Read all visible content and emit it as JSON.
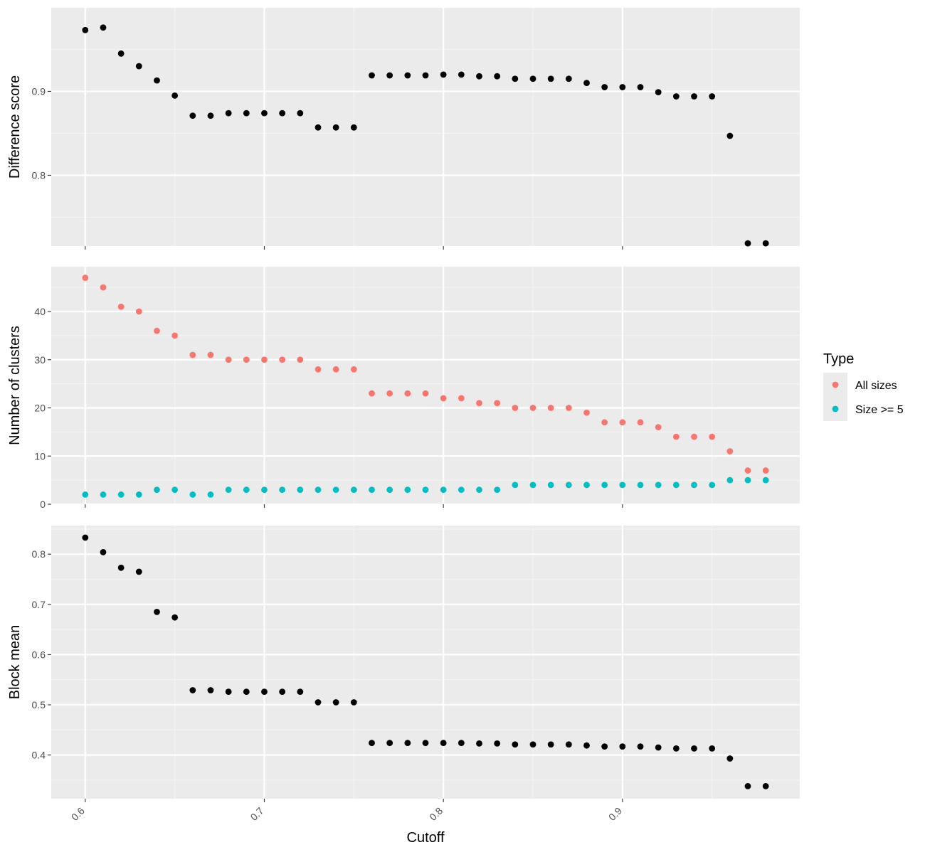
{
  "chart_data": {
    "type": "scatter",
    "xlabel": "Cutoff",
    "x_ticks": [
      "0.6",
      "0.7",
      "0.8",
      "0.9"
    ],
    "x_tick_values": [
      0.6,
      0.7,
      0.8,
      0.9
    ],
    "xlim": [
      0.581,
      0.999
    ],
    "grid": true,
    "legend": {
      "title": "Type",
      "position": "right",
      "entries": [
        {
          "name": "All sizes",
          "color": "#F8766D"
        },
        {
          "name": "Size >= 5",
          "color": "#00BFC4"
        }
      ]
    },
    "x": [
      0.6,
      0.61,
      0.62,
      0.63,
      0.64,
      0.65,
      0.66,
      0.67,
      0.68,
      0.69,
      0.7,
      0.71,
      0.72,
      0.73,
      0.74,
      0.75,
      0.76,
      0.77,
      0.78,
      0.79,
      0.8,
      0.81,
      0.82,
      0.83,
      0.84,
      0.85,
      0.86,
      0.87,
      0.88,
      0.89,
      0.9,
      0.91,
      0.92,
      0.93,
      0.94,
      0.95,
      0.96,
      0.97,
      0.98
    ],
    "panels": [
      {
        "ylabel": "Difference score",
        "y_ticks": [
          "0.8",
          "0.9"
        ],
        "y_tick_values": [
          0.8,
          0.9
        ],
        "ylim": [
          0.7157,
          0.9995
        ],
        "series": [
          {
            "color": "#000000",
            "values": [
              0.973,
              0.976,
              0.945,
              0.93,
              0.913,
              0.895,
              0.871,
              0.871,
              0.874,
              0.874,
              0.874,
              0.874,
              0.874,
              0.857,
              0.857,
              0.857,
              0.919,
              0.919,
              0.919,
              0.919,
              0.92,
              0.92,
              0.918,
              0.918,
              0.915,
              0.915,
              0.915,
              0.915,
              0.91,
              0.905,
              0.905,
              0.905,
              0.899,
              0.894,
              0.894,
              0.894,
              0.847,
              0.719,
              0.719
            ]
          }
        ]
      },
      {
        "ylabel": "Number of clusters",
        "y_ticks": [
          "0",
          "10",
          "20",
          "30",
          "40"
        ],
        "y_tick_values": [
          0,
          10,
          20,
          30,
          40
        ],
        "ylim": [
          0,
          49.3
        ],
        "series": [
          {
            "name": "All sizes",
            "color": "#F8766D",
            "values": [
              47,
              45,
              41,
              40,
              36,
              35,
              31,
              31,
              30,
              30,
              30,
              30,
              30,
              28,
              28,
              28,
              23,
              23,
              23,
              23,
              22,
              22,
              21,
              21,
              20,
              20,
              20,
              20,
              19,
              17,
              17,
              17,
              16,
              14,
              14,
              14,
              11,
              7,
              7
            ]
          },
          {
            "name": "Size >= 5",
            "color": "#00BFC4",
            "values": [
              2,
              2,
              2,
              2,
              3,
              3,
              2,
              2,
              3,
              3,
              3,
              3,
              3,
              3,
              3,
              3,
              3,
              3,
              3,
              3,
              3,
              3,
              3,
              3,
              4,
              4,
              4,
              4,
              4,
              4,
              4,
              4,
              4,
              4,
              4,
              4,
              5,
              5,
              5
            ]
          }
        ]
      },
      {
        "ylabel": "Block mean",
        "y_ticks": [
          "0.4",
          "0.5",
          "0.6",
          "0.7",
          "0.8"
        ],
        "y_tick_values": [
          0.4,
          0.5,
          0.6,
          0.7,
          0.8
        ],
        "ylim": [
          0.313,
          0.857
        ],
        "series": [
          {
            "color": "#000000",
            "values": [
              0.833,
              0.804,
              0.773,
              0.765,
              0.685,
              0.674,
              0.529,
              0.529,
              0.526,
              0.526,
              0.526,
              0.526,
              0.526,
              0.505,
              0.505,
              0.505,
              0.424,
              0.424,
              0.424,
              0.424,
              0.424,
              0.424,
              0.423,
              0.423,
              0.421,
              0.421,
              0.421,
              0.421,
              0.419,
              0.417,
              0.417,
              0.417,
              0.415,
              0.413,
              0.413,
              0.413,
              0.393,
              0.338,
              0.338
            ]
          }
        ]
      }
    ]
  }
}
